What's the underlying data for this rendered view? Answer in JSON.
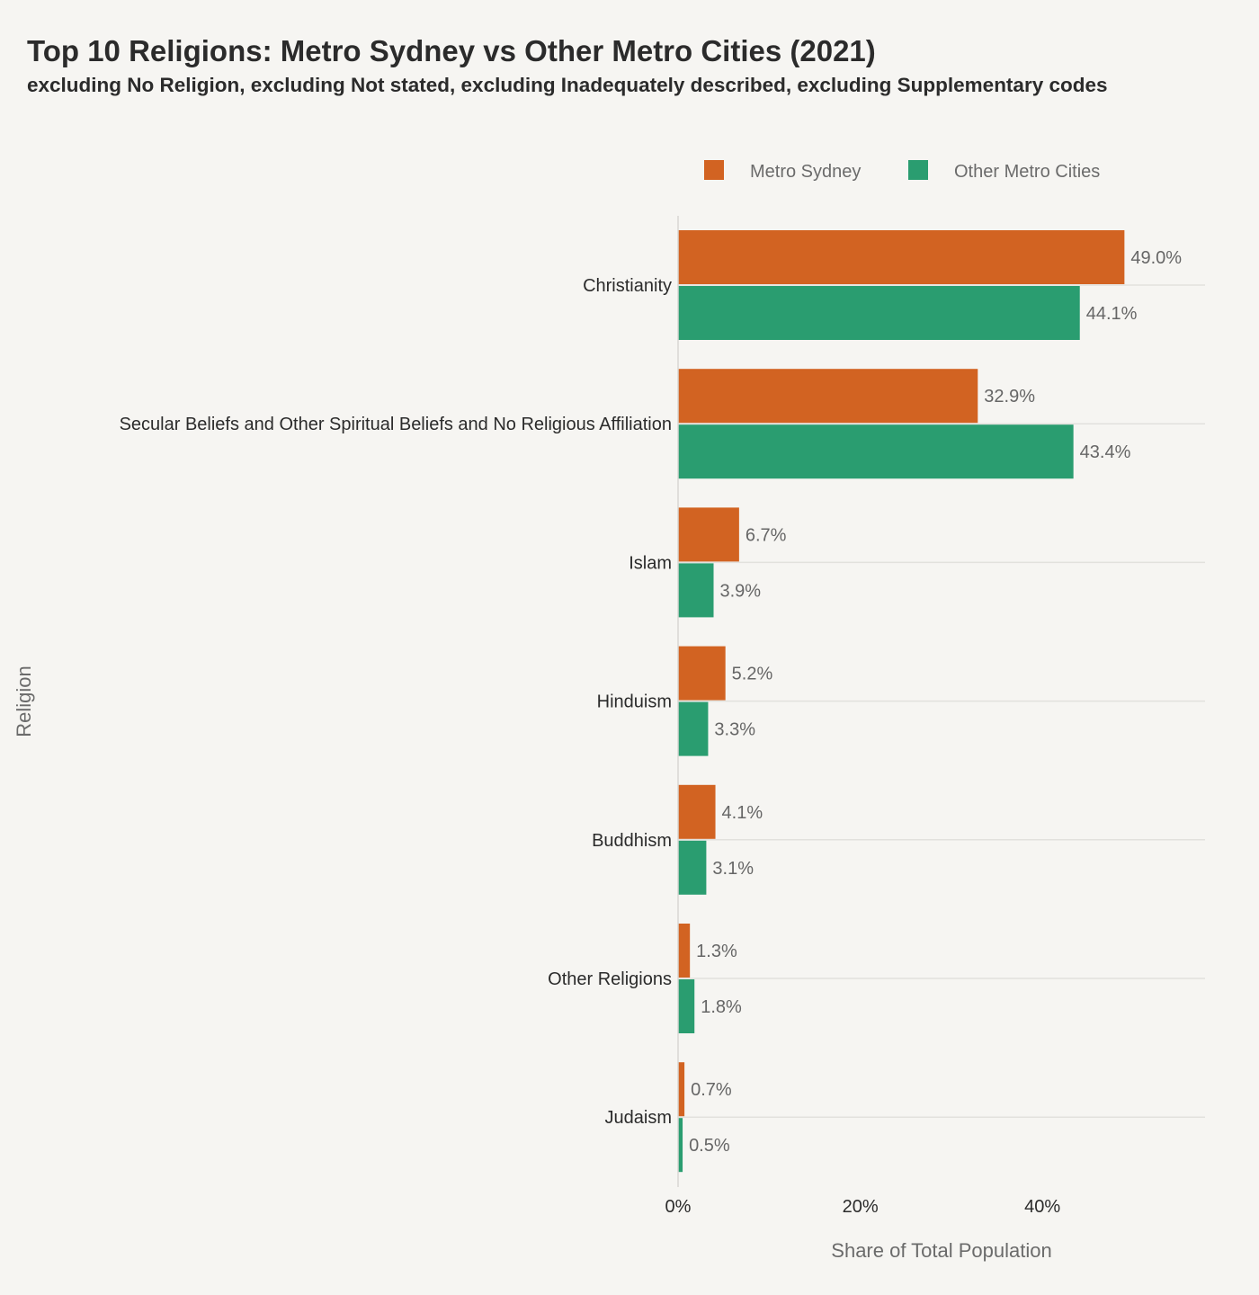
{
  "chart_data": {
    "type": "bar",
    "orientation": "horizontal",
    "title": "Top 10 Religions: Metro Sydney vs Other Metro Cities (2021)",
    "subtitle": "excluding No Religion, excluding Not stated, excluding Inadequately described, excluding Supplementary codes",
    "xlabel": "Share of Total Population",
    "ylabel": "Religion",
    "xlim": [
      0,
      57
    ],
    "x_ticks": [
      "0%",
      "20%",
      "40%"
    ],
    "grid": true,
    "legend_position": "top-right",
    "categories": [
      "Christianity",
      "Secular Beliefs and Other Spiritual Beliefs and No Religious Affiliation",
      "Islam",
      "Hinduism",
      "Buddhism",
      "Other Religions",
      "Judaism"
    ],
    "series": [
      {
        "name": "Metro Sydney",
        "color": "#d26322",
        "values": [
          49.0,
          32.9,
          6.7,
          5.2,
          4.1,
          1.3,
          0.7
        ],
        "labels": [
          "49.0%",
          "32.9%",
          "6.7%",
          "5.2%",
          "4.1%",
          "1.3%",
          "0.7%"
        ]
      },
      {
        "name": "Other Metro Cities",
        "color": "#2a9d70",
        "values": [
          44.1,
          43.4,
          3.9,
          3.3,
          3.1,
          1.8,
          0.5
        ],
        "labels": [
          "44.1%",
          "43.4%",
          "3.9%",
          "3.3%",
          "3.1%",
          "1.8%",
          "0.5%"
        ]
      }
    ]
  }
}
